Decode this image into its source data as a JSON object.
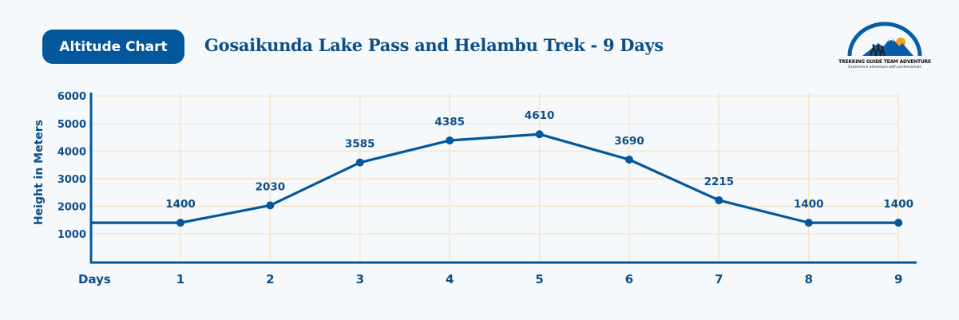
{
  "header": {
    "badge_label": "Altitude Chart",
    "title": "Gosaikunda Lake Pass and Helambu Trek - 9 Days"
  },
  "logo": {
    "name": "TREKKING GUIDE TEAM ADVENTURE",
    "tagline": "Experience adventure with professionals"
  },
  "colors": {
    "primary": "#03579a",
    "text": "#0e4f86",
    "grid": "#f6e6cc",
    "background": "#f5f9fc"
  },
  "chart_data": {
    "type": "line",
    "title": "Gosaikunda Lake Pass and Helambu Trek - 9 Days",
    "xlabel": "Days",
    "ylabel": "Height in Meters",
    "categories": [
      "1",
      "2",
      "3",
      "4",
      "5",
      "6",
      "7",
      "8",
      "9"
    ],
    "x": [
      1,
      2,
      3,
      4,
      5,
      6,
      7,
      8,
      9
    ],
    "values": [
      1400,
      2030,
      3585,
      4385,
      4610,
      3690,
      2215,
      1400,
      1400
    ],
    "data_labels": [
      "1400",
      "2030",
      "3585",
      "4385",
      "4610",
      "3690",
      "2215",
      "1400",
      "1400"
    ],
    "y_ticks": [
      "1000",
      "2000",
      "3000",
      "4000",
      "5000",
      "6000"
    ],
    "ylim": [
      0,
      6000
    ],
    "grid": true,
    "legend": null
  }
}
